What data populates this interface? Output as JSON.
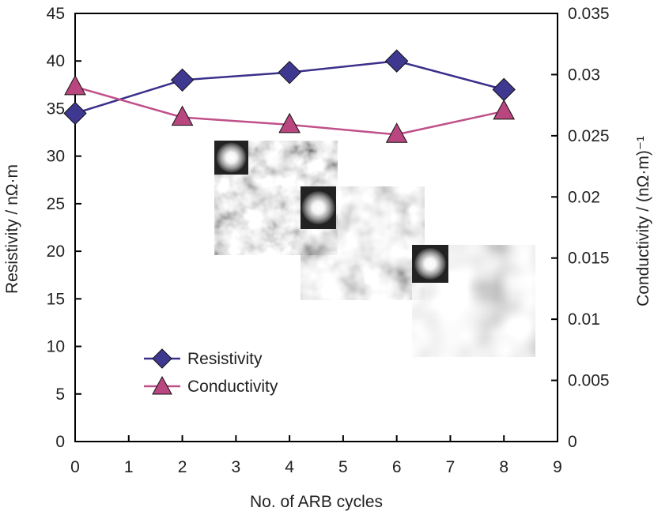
{
  "chart_data": {
    "type": "line",
    "xlabel": "No. of ARB cycles",
    "ylabel": "Resistivity / nΩ·m",
    "y2label": "Conductivity / (nΩ·m)⁻¹",
    "xlim": [
      0,
      9
    ],
    "ylim": [
      0,
      45
    ],
    "y2lim": [
      0,
      0.035
    ],
    "x_ticks": [
      0,
      1,
      2,
      3,
      4,
      5,
      6,
      7,
      8,
      9
    ],
    "y_ticks": [
      0,
      5,
      10,
      15,
      20,
      25,
      30,
      35,
      40,
      45
    ],
    "y2_ticks": [
      "0",
      "0.005",
      "0.01",
      "0.015",
      "0.02",
      "0.025",
      "0.03",
      "0.035"
    ],
    "grid": false,
    "legend_position": "lower-left",
    "series": [
      {
        "name": "Resistivity",
        "axis": "left",
        "marker": "diamond",
        "color": "#3a2f8a",
        "x": [
          0,
          2,
          4,
          6,
          8
        ],
        "values": [
          34.5,
          38.0,
          38.8,
          40.0,
          37.0
        ]
      },
      {
        "name": "Conductivity",
        "axis": "right",
        "marker": "triangle",
        "color": "#c0508a",
        "x": [
          0,
          2,
          4,
          6,
          8
        ],
        "values": [
          0.029,
          0.0265,
          0.0259,
          0.0251,
          0.027
        ]
      }
    ]
  }
}
